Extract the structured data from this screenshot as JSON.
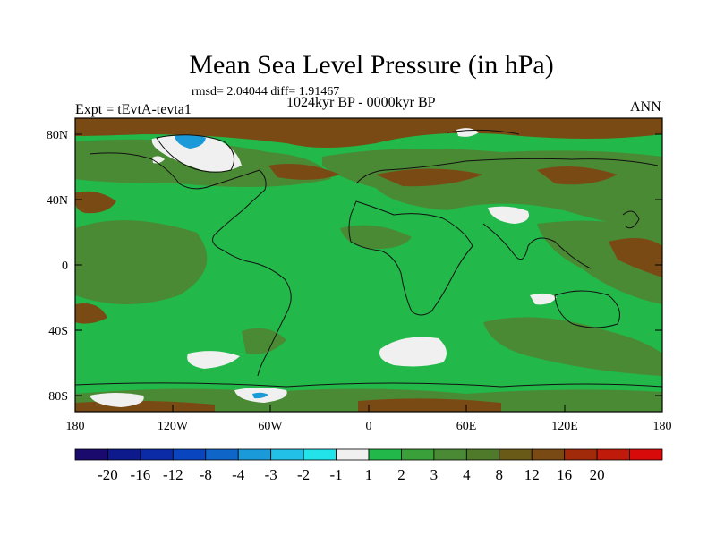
{
  "title": "Mean Sea Level Pressure (in hPa)",
  "stats_line": "rmsd= 2.04044 diff= 1.91467",
  "period_line": "1024kyr BP - 0000kyr BP",
  "experiment_label": "Expt = tEvtA-tevta1",
  "season_label": "ANN",
  "lat_labels": [
    "80N",
    "40N",
    "0",
    "40S",
    "80S"
  ],
  "lon_labels": [
    "180",
    "120W",
    "60W",
    "0",
    "60E",
    "120E",
    "180"
  ],
  "colorbar": {
    "colors": [
      "#1a0a6e",
      "#0d1a8c",
      "#0a2aa6",
      "#0a45c0",
      "#1066c8",
      "#1a9ad8",
      "#22bfe6",
      "#22e2ea",
      "#f0f0f0",
      "#22b84a",
      "#3aa03a",
      "#4a8a34",
      "#4f7a2a",
      "#6a5a18",
      "#7a4a14",
      "#a02a0a",
      "#c01a0a",
      "#d80a0a"
    ],
    "labels": [
      "-20",
      "-16",
      "-12",
      "-8",
      "-4",
      "-3",
      "-2",
      "-1",
      "1",
      "2",
      "3",
      "4",
      "8",
      "12",
      "16",
      "20"
    ]
  },
  "colors": {
    "ocean_green": "#22b84a",
    "olive": "#4a8a34",
    "brown": "#7a4a14",
    "white": "#f0f0f0",
    "blue": "#1a9ad8",
    "coast": "#111111"
  }
}
